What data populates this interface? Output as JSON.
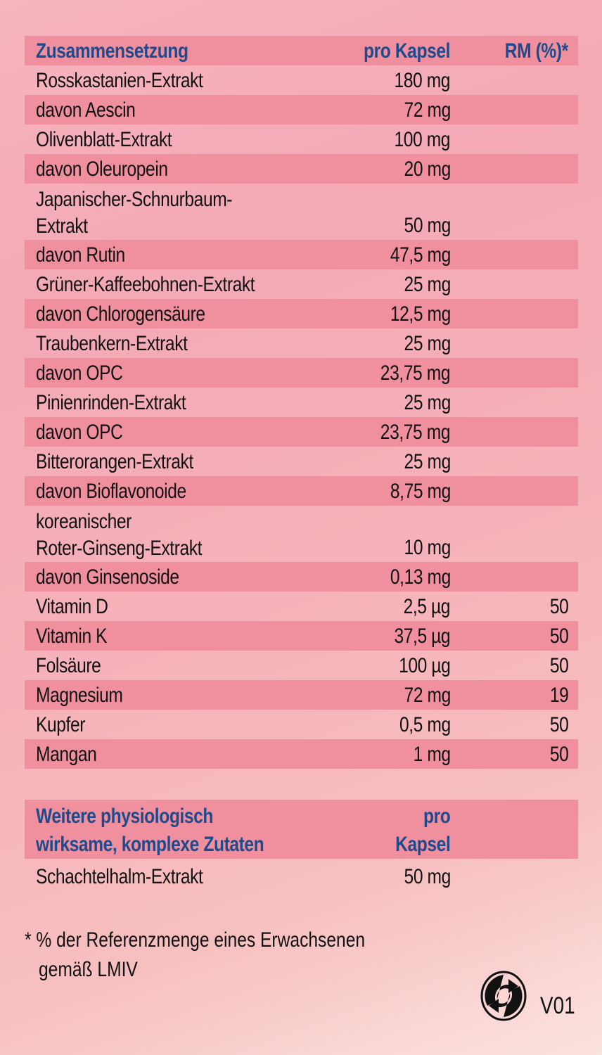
{
  "table1": {
    "header": {
      "name": "Zusammensetzung",
      "per_capsule": "pro Kapsel",
      "rm": "RM (%)*"
    },
    "rows": [
      {
        "name": "Rosskastanien-Extrakt",
        "amount": "180 mg",
        "rm": ""
      },
      {
        "name": "davon Aescin",
        "amount": "72 mg",
        "rm": ""
      },
      {
        "name": "Olivenblatt-Extrakt",
        "amount": "100 mg",
        "rm": ""
      },
      {
        "name": "davon Oleuropein",
        "amount": "20 mg",
        "rm": ""
      },
      {
        "name": "Japanischer-Schnurbaum-\nExtrakt",
        "amount": "50 mg",
        "rm": ""
      },
      {
        "name": "davon Rutin",
        "amount": "47,5 mg",
        "rm": ""
      },
      {
        "name": "Grüner-Kaffeebohnen-Extrakt",
        "amount": "25 mg",
        "rm": ""
      },
      {
        "name": "davon Chlorogensäure",
        "amount": "12,5 mg",
        "rm": ""
      },
      {
        "name": "Traubenkern-Extrakt",
        "amount": "25 mg",
        "rm": ""
      },
      {
        "name": "davon OPC",
        "amount": "23,75 mg",
        "rm": ""
      },
      {
        "name": "Pinienrinden-Extrakt",
        "amount": "25 mg",
        "rm": ""
      },
      {
        "name": "davon OPC",
        "amount": "23,75 mg",
        "rm": ""
      },
      {
        "name": "Bitterorangen-Extrakt",
        "amount": "25 mg",
        "rm": ""
      },
      {
        "name": "davon Bioflavonoide",
        "amount": "8,75 mg",
        "rm": ""
      },
      {
        "name": "koreanischer\nRoter-Ginseng-Extrakt",
        "amount": "10 mg",
        "rm": ""
      },
      {
        "name": "davon Ginsenoside",
        "amount": "0,13 mg",
        "rm": ""
      },
      {
        "name": "Vitamin D",
        "amount": "2,5 µg",
        "rm": "50"
      },
      {
        "name": "Vitamin K",
        "amount": "37,5 µg",
        "rm": "50"
      },
      {
        "name": "Folsäure",
        "amount": "100 µg",
        "rm": "50"
      },
      {
        "name": "Magnesium",
        "amount": "72 mg",
        "rm": "19"
      },
      {
        "name": "Kupfer",
        "amount": "0,5 mg",
        "rm": "50"
      },
      {
        "name": "Mangan",
        "amount": "1 mg",
        "rm": "50"
      }
    ]
  },
  "table2": {
    "header": {
      "name": "Weitere physiologisch\nwirksame, komplexe Zutaten",
      "per_capsule": "pro\nKapsel"
    },
    "rows": [
      {
        "name": "Schachtelhalm-Extrakt",
        "amount": "50 mg"
      }
    ]
  },
  "footnote": {
    "line1": "* % der Referenzmenge eines Erwachsenen",
    "line2": "gemäß LMIV"
  },
  "logo": {
    "icon": "green-dot-recycling-icon"
  },
  "version": "V01",
  "colors": {
    "header_text": "#1f4a8c",
    "shade": "#f0909f"
  }
}
